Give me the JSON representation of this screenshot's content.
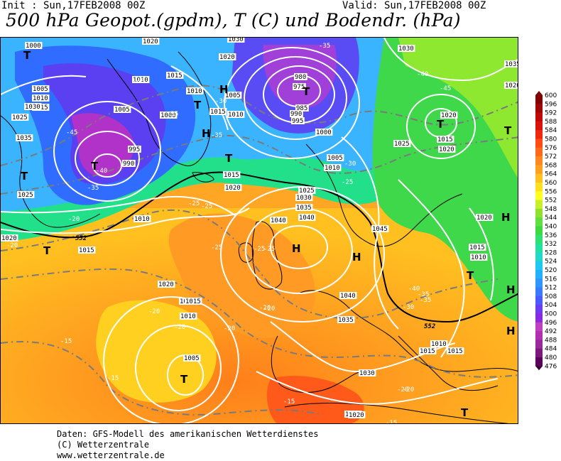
{
  "header": {
    "init": "Init : Sun,17FEB2008 00Z",
    "valid": "Valid: Sun,17FEB2008 00Z",
    "title": "500 hPa Geopot.(gpdm), T (C) und Bodendr. (hPa)"
  },
  "colors": {
    "geopot_scale": [
      "#5b005b",
      "#7b1a7b",
      "#9a2a9a",
      "#b030b0",
      "#c040c0",
      "#8a2be2",
      "#6a3df0",
      "#4a5cff",
      "#3a7aff",
      "#2f96ff",
      "#22b0ff",
      "#1fc8f0",
      "#22d8c8",
      "#22e0a0",
      "#30e070",
      "#40d840",
      "#60e040",
      "#90e030",
      "#c8f028",
      "#ffff20",
      "#ffe020",
      "#ffc020",
      "#ffa020",
      "#ff8820",
      "#ff6a1a",
      "#ff4c14",
      "#f02810",
      "#d8140c",
      "#c00a0a",
      "#a00808",
      "#800404"
    ],
    "isobar": "#ffffff",
    "isotherm": "#7a7a7a",
    "coast": "#000000"
  },
  "map": {
    "pressure_labels": [
      "1000",
      "1020",
      "1015",
      "1010",
      "1005",
      "1015",
      "1010",
      "1005",
      "1000",
      "995",
      "990",
      "1020",
      "1030",
      "980",
      "975",
      "985",
      "990",
      "995",
      "1000",
      "1005",
      "1010",
      "1015",
      "1020",
      "1025",
      "1030",
      "1035",
      "1040",
      "1045",
      "1040",
      "1035",
      "1030",
      "1025",
      "1020",
      "1015",
      "1010",
      "1005",
      "1010",
      "1015",
      "1020",
      "1030",
      "1025",
      "1020",
      "1015",
      "1010",
      "1005",
      "1010",
      "1015",
      "1025",
      "1015",
      "1020",
      "1010",
      "1015",
      "1035",
      "1020",
      "1025",
      "1030",
      "1035",
      "1040",
      "1020",
      "1015",
      "1010",
      "1015",
      "1020"
    ],
    "temperature_labels": [
      "-40",
      "-45",
      "-35",
      "-40",
      "-35",
      "-30",
      "-25",
      "-35",
      "-35",
      "-30",
      "-25",
      "-25",
      "-20",
      "-20",
      "-25",
      "-20",
      "-20",
      "-15",
      "-15",
      "-20",
      "-15",
      "-20",
      "-40",
      "-45",
      "-40",
      "-35",
      "-30",
      "-35",
      "-25",
      "-20",
      "-20",
      "-25",
      "-20",
      "-15"
    ],
    "geopot_label": "552",
    "highs": [
      "H",
      "H",
      "H",
      "H",
      "H",
      "H",
      "H"
    ],
    "lows": [
      "T",
      "T",
      "T",
      "T",
      "T",
      "T",
      "T",
      "T",
      "T",
      "T",
      "T",
      "T"
    ]
  },
  "scale": {
    "values": [
      "600",
      "596",
      "592",
      "588",
      "584",
      "580",
      "576",
      "572",
      "568",
      "564",
      "560",
      "556",
      "552",
      "548",
      "544",
      "540",
      "536",
      "532",
      "528",
      "524",
      "520",
      "516",
      "512",
      "508",
      "504",
      "500",
      "496",
      "492",
      "488",
      "484",
      "480",
      "476"
    ]
  },
  "footer": {
    "line1": "Daten: GFS-Modell des amerikanischen Wetterdienstes",
    "line2": "(C) Wetterzentrale",
    "line3": "www.wetterzentrale.de"
  }
}
